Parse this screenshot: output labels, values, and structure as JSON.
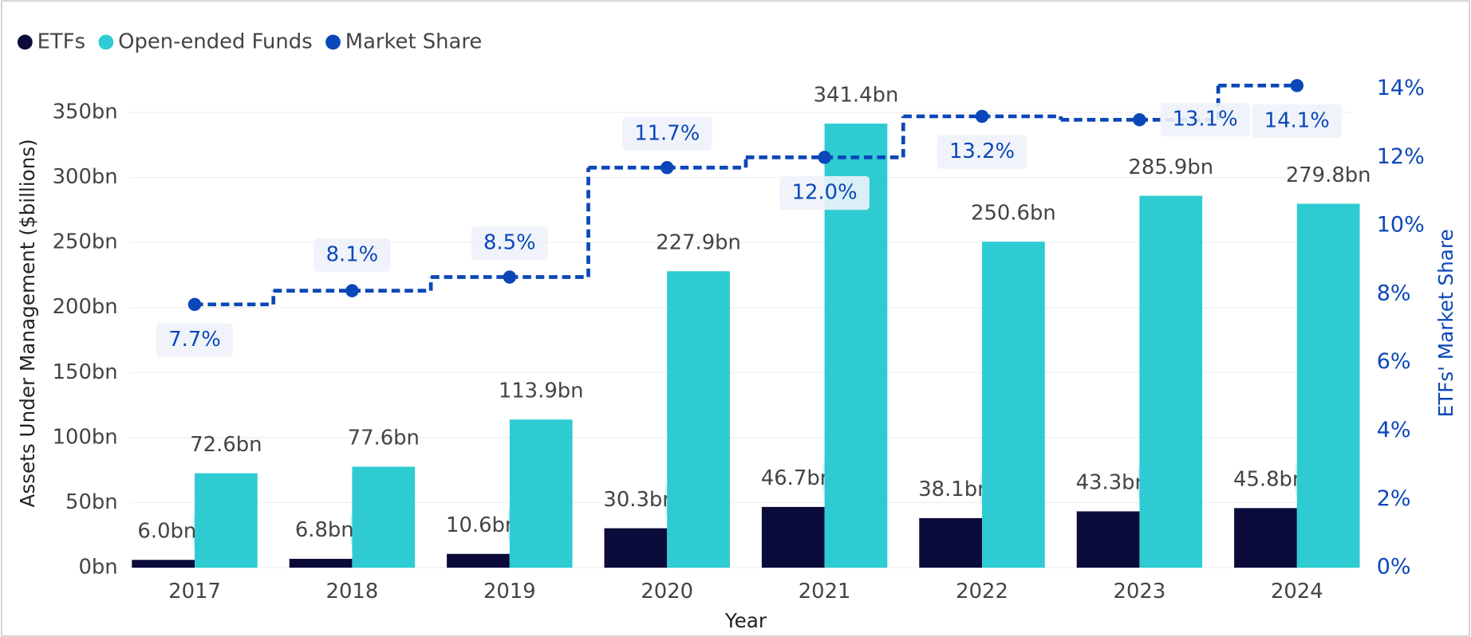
{
  "chart_data": {
    "type": "bar",
    "categories": [
      "2017",
      "2018",
      "2019",
      "2020",
      "2021",
      "2022",
      "2023",
      "2024"
    ],
    "series": [
      {
        "name": "ETFs",
        "color": "#0b0b3b",
        "values": [
          6.0,
          6.8,
          10.6,
          30.3,
          46.7,
          38.1,
          43.3,
          45.8
        ],
        "value_labels": [
          "6.0bn",
          "6.8bn",
          "10.6bn",
          "30.3bn",
          "46.7bn",
          "38.1bn",
          "43.3bn",
          "45.8bn"
        ]
      },
      {
        "name": "Open-ended Funds",
        "color": "#2ecbd3",
        "values": [
          72.6,
          77.6,
          113.9,
          227.9,
          341.4,
          250.6,
          285.9,
          279.8
        ],
        "value_labels": [
          "72.6bn",
          "77.6bn",
          "113.9bn",
          "227.9bn",
          "341.4bn",
          "250.6bn",
          "285.9bn",
          "279.8bn"
        ]
      },
      {
        "name": "Market Share",
        "type": "line",
        "axis": "y2",
        "color": "#0b47b8",
        "values": [
          7.7,
          8.1,
          8.5,
          11.7,
          12.0,
          13.2,
          13.1,
          14.1
        ],
        "value_labels": [
          "7.7%",
          "8.1%",
          "8.5%",
          "11.7%",
          "12.0%",
          "13.2%",
          "13.1%",
          "14.1%"
        ]
      }
    ],
    "xlabel": "Year",
    "ylabel": "Assets Under Management ($billions)",
    "y2label": "ETFs' Market Share",
    "ylim": [
      0,
      368
    ],
    "yticks": [
      {
        "value": 0,
        "label": "0bn"
      },
      {
        "value": 50,
        "label": "50bn"
      },
      {
        "value": 100,
        "label": "100bn"
      },
      {
        "value": 150,
        "label": "150bn"
      },
      {
        "value": 200,
        "label": "200bn"
      },
      {
        "value": 250,
        "label": "250bn"
      },
      {
        "value": 300,
        "label": "300bn"
      },
      {
        "value": 350,
        "label": "350bn"
      }
    ],
    "y2lim": [
      0,
      14
    ],
    "y2ticks": [
      {
        "value": 0,
        "label": "0%"
      },
      {
        "value": 2,
        "label": "2%"
      },
      {
        "value": 4,
        "label": "4%"
      },
      {
        "value": 6,
        "label": "6%"
      },
      {
        "value": 8,
        "label": "8%"
      },
      {
        "value": 10,
        "label": "10%"
      },
      {
        "value": 12,
        "label": "12%"
      },
      {
        "value": 14,
        "label": "14%"
      }
    ],
    "grid": true,
    "legend": "top-left"
  }
}
